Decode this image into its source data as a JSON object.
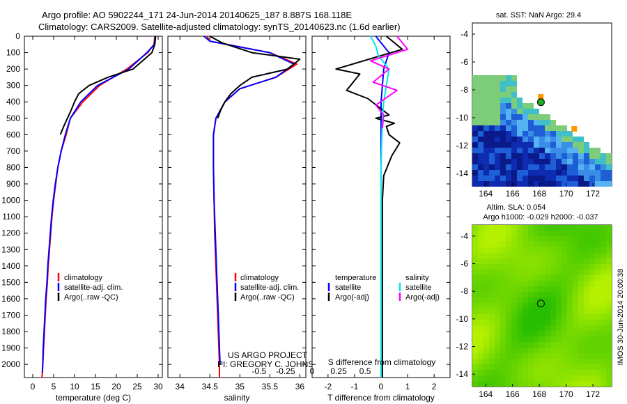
{
  "header": {
    "line1": "Argo profile: AO 5902244_171 24-Jun-2014 20140625_187 8.887S 168.118E",
    "line2": "Climatology: CARS2009. Satellite-adjusted climatology: synTS_20140623.nc (1.6d earlier)"
  },
  "colors": {
    "climatology": "#ff0000",
    "satellite_adj": "#0000ff",
    "argo": "#000000",
    "salinity_satellite": "#00e5ee",
    "salinity_argo": "#ff00ff"
  },
  "credits": {
    "project": "US ARGO PROJECT",
    "pi": "PI: GREGORY C. JOHNSON",
    "watermark": "IMOS 30-Jun-2014 20:00:38"
  },
  "chart_data": [
    {
      "type": "line",
      "xlabel": "temperature (deg C)",
      "ylabel": "",
      "xlim": [
        -2,
        31
      ],
      "ylim": [
        2080,
        0
      ],
      "xticks": [
        0,
        5,
        10,
        15,
        20,
        25,
        30
      ],
      "yticks": [
        0,
        100,
        200,
        300,
        400,
        500,
        600,
        700,
        800,
        900,
        1000,
        1100,
        1200,
        1300,
        1400,
        1500,
        1600,
        1700,
        1800,
        1900,
        2000
      ],
      "legend": [
        "climatology",
        "satellite-adj. clim.",
        "Argo(..raw -QC)"
      ],
      "legend_position": "bottom-center",
      "series": [
        {
          "name": "climatology",
          "color": "#ff0000",
          "x": [
            29.2,
            29.0,
            27.5,
            22.5,
            16,
            12,
            9,
            8,
            6.8,
            6,
            5.5,
            5,
            4.6,
            4.3,
            4,
            3.7,
            3.5,
            3.2,
            3,
            2.8,
            2.6,
            2.4,
            2.3,
            2.2
          ],
          "y": [
            0,
            50,
            100,
            200,
            300,
            400,
            500,
            600,
            700,
            800,
            900,
            1000,
            1100,
            1200,
            1300,
            1400,
            1500,
            1600,
            1700,
            1800,
            1900,
            2000,
            2050,
            2080
          ]
        },
        {
          "name": "satellite-adj. clim.",
          "color": "#0000ff",
          "x": [
            29.3,
            29.1,
            27.3,
            23,
            15.5,
            11.5,
            9,
            7.8,
            6.8,
            6,
            5.4,
            4.9,
            4.5,
            4.2,
            3.9,
            3.6,
            3.4,
            3.1,
            2.9,
            2.7,
            2.5,
            2.4,
            2.3
          ],
          "y": [
            0,
            50,
            100,
            200,
            300,
            400,
            500,
            600,
            700,
            800,
            900,
            1000,
            1100,
            1200,
            1300,
            1400,
            1500,
            1600,
            1700,
            1800,
            1900,
            2000,
            2050
          ]
        },
        {
          "name": "Argo(..raw -QC)",
          "color": "#000000",
          "x": [
            29.4,
            29.2,
            28.5,
            24,
            18,
            13.5,
            11,
            10,
            9.2,
            8.3,
            7.4,
            6.6
          ],
          "y": [
            0,
            50,
            100,
            200,
            250,
            300,
            350,
            400,
            450,
            500,
            550,
            600
          ]
        }
      ]
    },
    {
      "type": "line",
      "xlabel": "salinity",
      "ylabel": "",
      "xlim": [
        33.8,
        36.1
      ],
      "ylim": [
        2080,
        0
      ],
      "xticks": [
        34,
        34.5,
        35,
        35.5,
        36
      ],
      "legend": [
        "climatology",
        "satellite-adj. clim.",
        "Argo(..raw -QC)"
      ],
      "legend_position": "bottom-center",
      "series": [
        {
          "name": "climatology",
          "color": "#ff0000",
          "x": [
            34.45,
            34.5,
            35.5,
            35.95,
            35.6,
            35,
            34.75,
            34.6,
            34.56,
            34.56,
            34.57,
            34.58,
            34.6,
            34.62,
            34.64,
            34.66,
            34.66
          ],
          "y": [
            0,
            30,
            100,
            170,
            250,
            320,
            400,
            500,
            600,
            800,
            1000,
            1200,
            1400,
            1600,
            1800,
            2000,
            2080
          ]
        },
        {
          "name": "satellite-adj. clim.",
          "color": "#0000ff",
          "x": [
            34.4,
            34.5,
            35.5,
            35.9,
            35.6,
            35,
            34.75,
            34.6,
            34.56,
            34.56,
            34.57,
            34.59,
            34.61,
            34.63,
            34.65,
            34.67
          ],
          "y": [
            0,
            30,
            100,
            170,
            250,
            320,
            400,
            500,
            600,
            800,
            1000,
            1200,
            1400,
            1600,
            1800,
            2000
          ]
        },
        {
          "name": "Argo(..raw -QC)",
          "color": "#000000",
          "x": [
            34.5,
            34.7,
            35.2,
            36.0,
            35.8,
            35.2,
            35.0,
            34.85,
            34.75,
            34.68,
            34.63
          ],
          "y": [
            0,
            40,
            100,
            140,
            200,
            250,
            300,
            350,
            400,
            450,
            500
          ]
        }
      ]
    },
    {
      "type": "line",
      "xlabel": "T difference from climatology",
      "x2label": "S difference from climatology",
      "ylabel": "",
      "xlim": [
        -2.6,
        2.6
      ],
      "ylim": [
        2080,
        0
      ],
      "xticks": [
        -2,
        -1,
        0,
        1,
        2
      ],
      "x2ticks": [
        "-0.5",
        "-0.25",
        "0",
        "0.25",
        "0.5"
      ],
      "legend": [
        {
          "group": "temperature",
          "items": [
            "satellite",
            "Argo(-adj)"
          ]
        },
        {
          "group": "salinity",
          "items": [
            "satellite",
            "Argo(-adj)"
          ]
        }
      ],
      "legend_position": "bottom-center",
      "series": [
        {
          "name": "temperature satellite",
          "color": "#0000ff",
          "x": [
            -0.2,
            0.3,
            0.1,
            0.05,
            0,
            0,
            0,
            0,
            0,
            0,
            0,
            0,
            0
          ],
          "y": [
            0,
            100,
            200,
            300,
            400,
            600,
            800,
            1000,
            1200,
            1400,
            1600,
            1800,
            2000
          ]
        },
        {
          "name": "temperature Argo(-adj)",
          "color": "#000000",
          "x": [
            0.2,
            0.8,
            -1.7,
            -0.8,
            -1.3,
            -0.5,
            0.3,
            -0.2,
            0.5,
            0.2,
            0.3,
            0.7,
            0.4,
            0.1,
            0.05,
            0.05
          ],
          "y": [
            0,
            80,
            200,
            230,
            330,
            380,
            480,
            500,
            530,
            550,
            600,
            650,
            730,
            850,
            1000,
            2080
          ]
        },
        {
          "name": "salinity satellite",
          "color": "#00e5ee",
          "x": [
            -0.4,
            -0.2,
            -0.1,
            0.3,
            0.2,
            0.1,
            0.05,
            0,
            0,
            0,
            0
          ],
          "y": [
            0,
            60,
            120,
            200,
            300,
            400,
            500,
            800,
            1200,
            1600,
            2080
          ]
        },
        {
          "name": "salinity Argo(-adj)",
          "color": "#ff00ff",
          "x": [
            0.6,
            1.0,
            -0.4,
            0.3,
            -0.3,
            0.6,
            -0.2,
            0.1,
            0.05
          ],
          "y": [
            0,
            80,
            150,
            200,
            280,
            330,
            420,
            480,
            560
          ]
        }
      ]
    }
  ],
  "map_sst": {
    "title": "sat. SST: NaN Argo: 29.4",
    "lon_ticks": [
      "164",
      "166",
      "168",
      "170",
      "172"
    ],
    "lat_ticks": [
      "-4",
      "-6",
      "-8",
      "-10",
      "-12",
      "-14"
    ],
    "float_lon": 168.118,
    "float_lat": -8.887
  },
  "map_sla": {
    "title_line1": "Altim. SLA: 0.054",
    "title_line2": "Argo h1000: -0.029 h2000: -0.037",
    "lon_ticks": [
      "164",
      "166",
      "168",
      "170",
      "172"
    ],
    "lat_ticks": [
      "-4",
      "-6",
      "-8",
      "-10",
      "-12",
      "-14"
    ],
    "float_lon": 168.118,
    "float_lat": -8.887
  }
}
